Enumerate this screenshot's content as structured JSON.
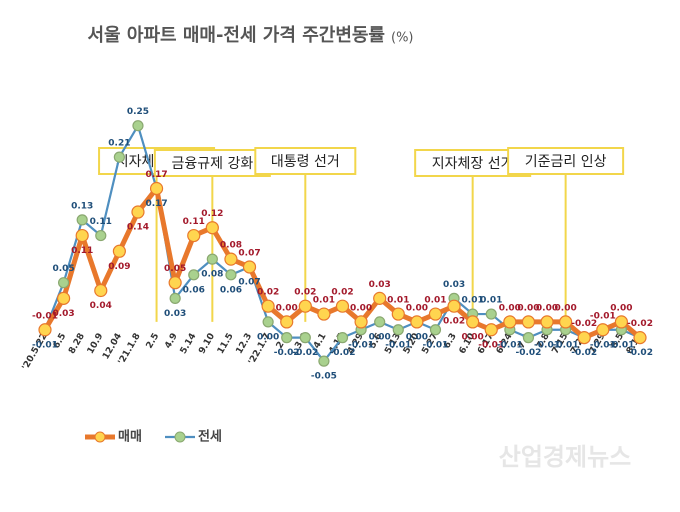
{
  "chart_data": {
    "type": "line",
    "title": "서울 아파트 매매-전세 가격 주간변동률",
    "unit": "(%)",
    "categories": [
      "'20.5.22",
      "6.5",
      "8.28",
      "10.9",
      "12.04",
      "'21.1.8",
      "2.5",
      "4.9",
      "5.14",
      "9.10",
      "11.5",
      "12.3",
      "'22.1.7",
      "2.4",
      "3.4",
      "4.1",
      "4.15",
      "4.29",
      "5.6",
      "5.13",
      "5.20",
      "5.27",
      "6.3",
      "6.10",
      "6.17",
      "6.24",
      "7.1",
      "7.8",
      "7.15",
      "7.22",
      "7.29",
      "8.5",
      "8.12"
    ],
    "series": [
      {
        "name": "매매",
        "color": "#e8782c",
        "marker_color": "#ffd54f",
        "label_color": "#a3192b",
        "values": [
          -0.01,
          0.03,
          0.11,
          0.04,
          0.09,
          0.14,
          0.17,
          0.05,
          0.11,
          0.12,
          0.08,
          0.07,
          0.02,
          0.0,
          0.02,
          0.01,
          0.02,
          0.0,
          0.03,
          0.01,
          0.0,
          0.01,
          0.02,
          0.0,
          -0.01,
          0.0,
          0.0,
          0.0,
          0.0,
          -0.02,
          -0.01,
          0.0,
          -0.02
        ],
        "value_labels": [
          "-0.01",
          "0.03",
          "0.11",
          "0.04",
          "0.09",
          "0.14",
          "0.17",
          "0.05",
          "0.11",
          "0.12",
          "0.08",
          "0.07",
          "0.02",
          "0.00",
          "0.02",
          "0.01",
          "0.02",
          "0.00",
          "0.03",
          "0.01",
          "0.00",
          "0.01",
          "0.02",
          "0.00",
          "-0.01",
          "0.00",
          "0.00",
          "0.00",
          "0.00",
          "-0.02",
          "-0.01",
          "0.00",
          "-0.02"
        ]
      },
      {
        "name": "전세",
        "color": "#4f8fc0",
        "marker_color": "#a9d18e",
        "label_color": "#1f4e79",
        "values": [
          -0.01,
          0.05,
          0.13,
          0.11,
          0.21,
          0.25,
          0.17,
          0.03,
          0.06,
          0.08,
          0.06,
          0.07,
          0.0,
          -0.02,
          -0.02,
          -0.05,
          -0.02,
          -0.01,
          0.0,
          -0.01,
          0.0,
          -0.01,
          0.03,
          0.01,
          0.01,
          -0.01,
          -0.02,
          -0.01,
          -0.01,
          -0.02,
          -0.01,
          -0.01,
          -0.02
        ],
        "value_labels": [
          "-0.01",
          "0.05",
          "0.13",
          "0.11",
          "0.21",
          "0.25",
          "0.17",
          "0.03",
          "0.06",
          "0.08",
          "0.06",
          "0.07",
          "0.00",
          "-0.02",
          "-0.02",
          "-0.05",
          "-0.02",
          "-0.01",
          "0.00",
          "-0.01",
          "0.00",
          "-0.01",
          "0.03",
          "0.01",
          "0.01",
          "-0.01",
          "-0.02",
          "-0.01",
          "-0.01",
          "-0.02",
          "-0.01",
          "-0.01",
          "-0.02"
        ]
      }
    ],
    "ylim": [
      -0.06,
      0.27
    ],
    "annotations": [
      {
        "text": "지자체장 선거",
        "at": "2.5"
      },
      {
        "text": "금융규제 강화",
        "at": "9.10"
      },
      {
        "text": "대통령 선거",
        "at": "3.4"
      },
      {
        "text": "지자체장 선거",
        "at": "6.10"
      },
      {
        "text": "기준금리 인상",
        "at": "7.15"
      }
    ],
    "watermark": "산업경제뉴스"
  }
}
